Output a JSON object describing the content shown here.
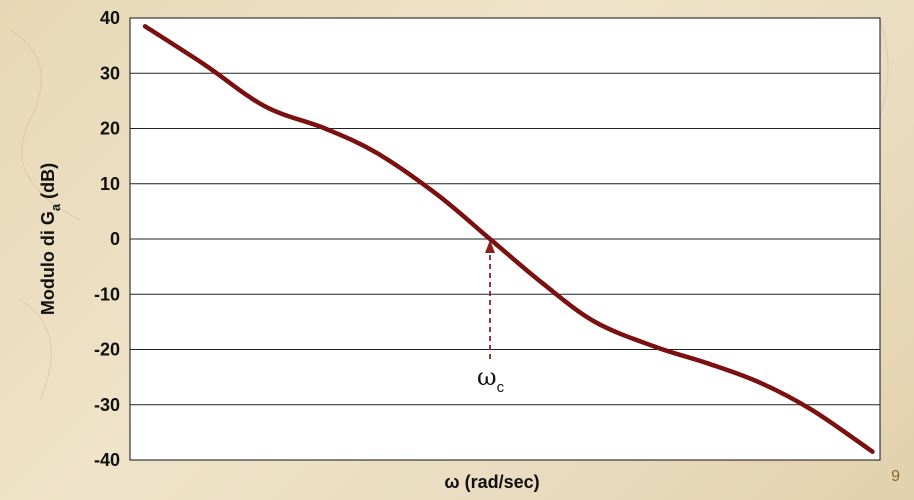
{
  "page": {
    "page_number": "9"
  },
  "chart_data": {
    "type": "line",
    "title": "",
    "xlabel": "ω  (rad/sec)",
    "ylabel": "Modulo di G",
    "ylabel_subscript": "a",
    "ylabel_suffix": " (dB)",
    "ylim": [
      -40,
      40
    ],
    "yticks": [
      40,
      30,
      20,
      10,
      0,
      -10,
      -20,
      -30,
      -40
    ],
    "xlim": [
      0,
      1
    ],
    "grid": "horizontal",
    "series": [
      {
        "color": "#7a1010",
        "x": [
          0.02,
          0.1,
          0.18,
          0.26,
          0.33,
          0.41,
          0.48,
          0.55,
          0.62,
          0.7,
          0.77,
          0.84,
          0.91,
          0.99
        ],
        "y": [
          38.5,
          31.5,
          24,
          20,
          15.5,
          8,
          0,
          -8,
          -15,
          -19.5,
          -22.5,
          -26,
          -31,
          -38.5
        ]
      }
    ],
    "annotations": [
      {
        "text": "ω",
        "subscript": "c",
        "x": 0.48,
        "y": 0
      }
    ],
    "colors": {
      "curve": "#7a1010",
      "arrow": "#8b2020",
      "plot_bg": "#ffffff",
      "grid": "#222222"
    }
  }
}
